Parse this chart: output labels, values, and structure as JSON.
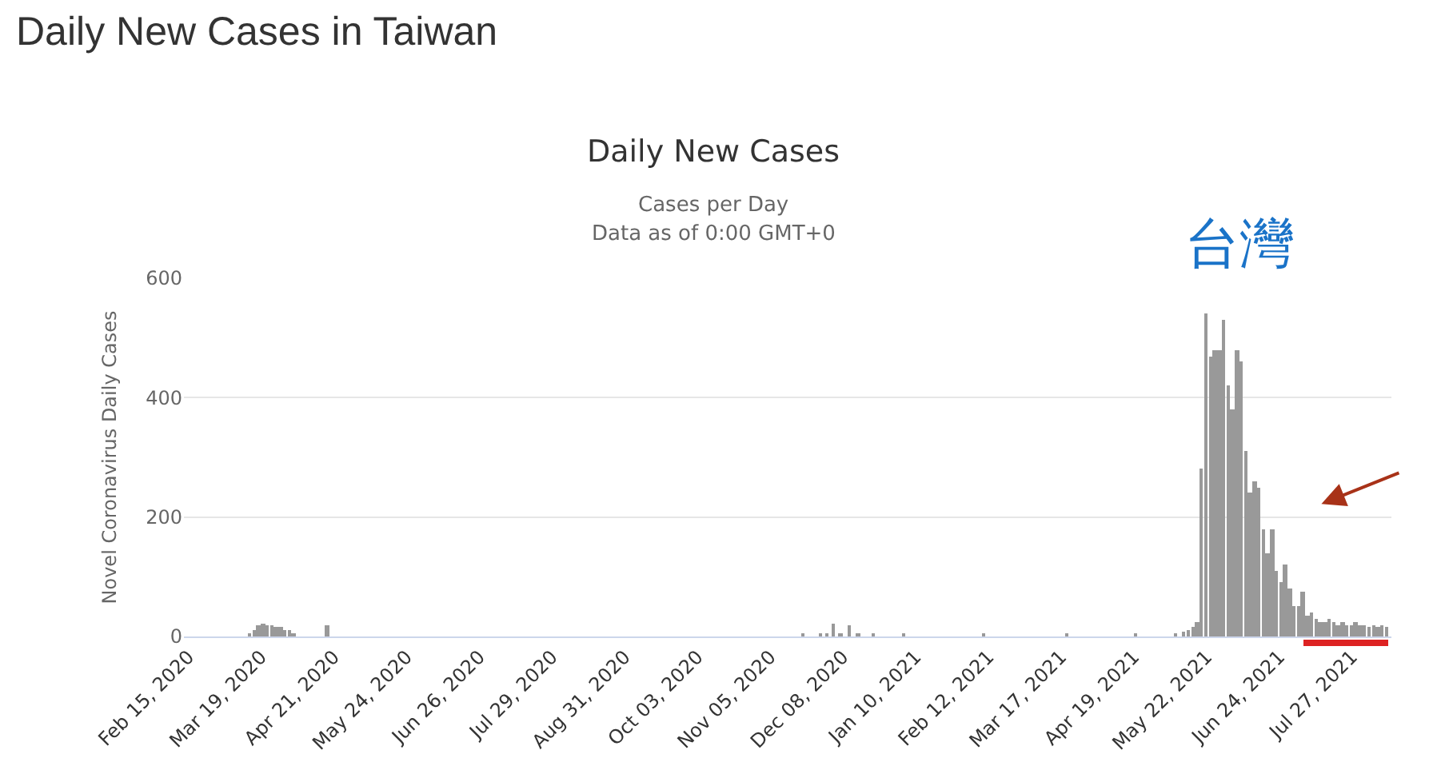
{
  "chart_data": {
    "type": "bar",
    "title": "Daily New Cases in Taiwan",
    "subtitle": "Daily New Cases",
    "ylabel": "Novel Coronavirus Daily Cases",
    "annotations": [
      "Cases per Day",
      "Data as of 0:00 GMT+0",
      "台灣"
    ],
    "x": [
      "2020-03-14",
      "2020-03-16",
      "2020-03-18",
      "2020-03-20",
      "2020-03-22",
      "2020-03-24",
      "2020-03-26",
      "2020-03-28",
      "2020-03-30",
      "2020-04-01",
      "2020-04-03",
      "2020-04-18",
      "2020-11-20",
      "2020-11-28",
      "2020-12-01",
      "2020-12-04",
      "2020-12-07",
      "2020-12-11",
      "2020-12-15",
      "2020-12-22",
      "2021-01-05",
      "2021-02-10",
      "2021-03-20",
      "2021-04-20",
      "2021-05-08",
      "2021-05-12",
      "2021-05-14",
      "2021-05-16",
      "2021-05-18",
      "2021-05-20",
      "2021-05-22",
      "2021-05-24",
      "2021-05-26",
      "2021-05-28",
      "2021-05-30",
      "2021-06-01",
      "2021-06-03",
      "2021-06-05",
      "2021-06-07",
      "2021-06-09",
      "2021-06-11",
      "2021-06-13",
      "2021-06-15",
      "2021-06-17",
      "2021-06-19",
      "2021-06-21",
      "2021-06-23",
      "2021-06-25",
      "2021-06-27",
      "2021-06-29",
      "2021-07-01",
      "2021-07-03",
      "2021-07-05",
      "2021-07-07",
      "2021-07-09",
      "2021-07-11",
      "2021-07-13",
      "2021-07-15",
      "2021-07-17",
      "2021-07-19",
      "2021-07-21",
      "2021-07-23",
      "2021-07-25",
      "2021-07-27",
      "2021-07-29",
      "2021-07-31",
      "2021-08-02",
      "2021-08-04",
      "2021-08-06",
      "2021-08-08",
      "2021-08-10",
      "2021-08-12"
    ],
    "series": [
      {
        "color": "#999999",
        "values": [
          5,
          10,
          20,
          22,
          18,
          20,
          17,
          15,
          12,
          10,
          6,
          18,
          4,
          6,
          5,
          21,
          6,
          18,
          5,
          4,
          4,
          4,
          4,
          4,
          5,
          7,
          12,
          15,
          25,
          280,
          540,
          470,
          480,
          480,
          530,
          420,
          380,
          480,
          460,
          310,
          240,
          260,
          250,
          180,
          140,
          180,
          110,
          90,
          120,
          80,
          50,
          50,
          75,
          35,
          40,
          30,
          25,
          25,
          30,
          25,
          20,
          25,
          20,
          20,
          25,
          20,
          20,
          15,
          20,
          15,
          18,
          15
        ]
      }
    ],
    "xlim": [
      "2020-02-13",
      "2021-08-14"
    ],
    "xticks": [
      {
        "value": "2020-02-15",
        "label": "Feb 15, 2020"
      },
      {
        "value": "2020-03-19",
        "label": "Mar 19, 2020"
      },
      {
        "value": "2020-04-21",
        "label": "Apr 21, 2020"
      },
      {
        "value": "2020-05-24",
        "label": "May 24, 2020"
      },
      {
        "value": "2020-06-26",
        "label": "Jun 26, 2020"
      },
      {
        "value": "2020-07-29",
        "label": "Jul 29, 2020"
      },
      {
        "value": "2020-08-31",
        "label": "Aug 31, 2020"
      },
      {
        "value": "2020-10-03",
        "label": "Oct 03, 2020"
      },
      {
        "value": "2020-11-05",
        "label": "Nov 05, 2020"
      },
      {
        "value": "2020-12-08",
        "label": "Dec 08, 2020"
      },
      {
        "value": "2021-01-10",
        "label": "Jan 10, 2021"
      },
      {
        "value": "2021-02-12",
        "label": "Feb 12, 2021"
      },
      {
        "value": "2021-03-17",
        "label": "Mar 17, 2021"
      },
      {
        "value": "2021-04-19",
        "label": "Apr 19, 2021"
      },
      {
        "value": "2021-05-22",
        "label": "May 22, 2021"
      },
      {
        "value": "2021-06-24",
        "label": "Jun 24, 2021"
      },
      {
        "value": "2021-07-27",
        "label": "Jul 27, 2021"
      }
    ],
    "ylim": [
      0,
      600
    ],
    "yticks": [
      0,
      200,
      400,
      600
    ],
    "grid": "y"
  }
}
